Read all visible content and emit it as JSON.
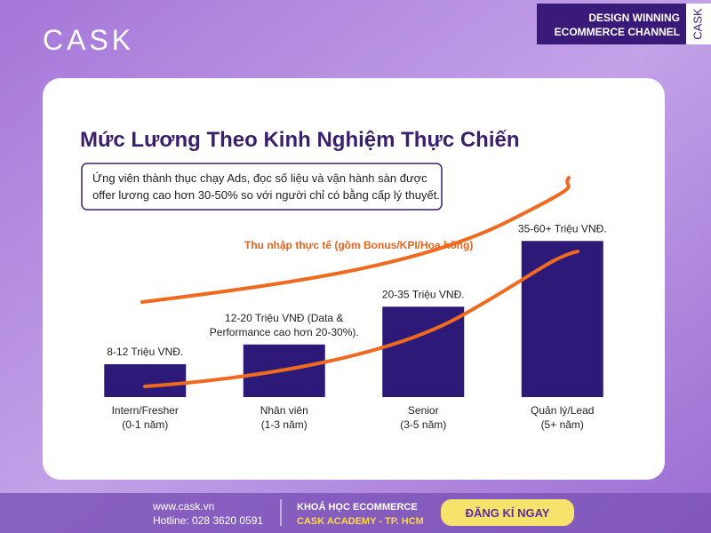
{
  "header": {
    "logo": "CASK",
    "badge": [
      "DESIGN WINNING",
      "ECOMMERCE CHANNEL"
    ],
    "badge_side": "CASK"
  },
  "chart_data": {
    "type": "bar",
    "title": "Mức Lương Theo Kinh Nghiệm Thực Chiến",
    "note": [
      "Ứng viên thành thục chạy Ads, đọc số liệu và vận hành sàn được",
      "offer lương cao hơn 30-50% so với người chỉ có bằng cấp lý thuyết."
    ],
    "annotation": "Thu nhập thực tế (gồm Bonus/KPI/Hoa hồng)",
    "categories": [
      [
        "Intern/Fresher",
        "(0-1 năm)"
      ],
      [
        "Nhân viên",
        "(1-3 năm)"
      ],
      [
        "Senior",
        "(3-5 năm)"
      ],
      [
        "Quản lý/Lead",
        "(5+ năm)"
      ]
    ],
    "values": [
      10,
      16,
      27.5,
      47.5
    ],
    "value_labels": [
      [
        "8-12 Triệu VNĐ."
      ],
      [
        "12-20 Triệu VNĐ (Data &",
        "Performance cao hơn 20-30%)."
      ],
      [
        "20-35 Triệu VNĐ."
      ],
      [
        "35-60+ Triệu VNĐ."
      ]
    ],
    "color": "#2d1a78",
    "ylim": [
      0,
      50
    ]
  },
  "footer": {
    "website": "www.cask.vn",
    "hotline": "Hotline: 028 3620 0591",
    "course": "KHOÁ HỌC ECOMMERCE",
    "academy": "CASK ACADEMY - TP. HCM",
    "cta": "ĐĂNG KÍ NGAY"
  }
}
